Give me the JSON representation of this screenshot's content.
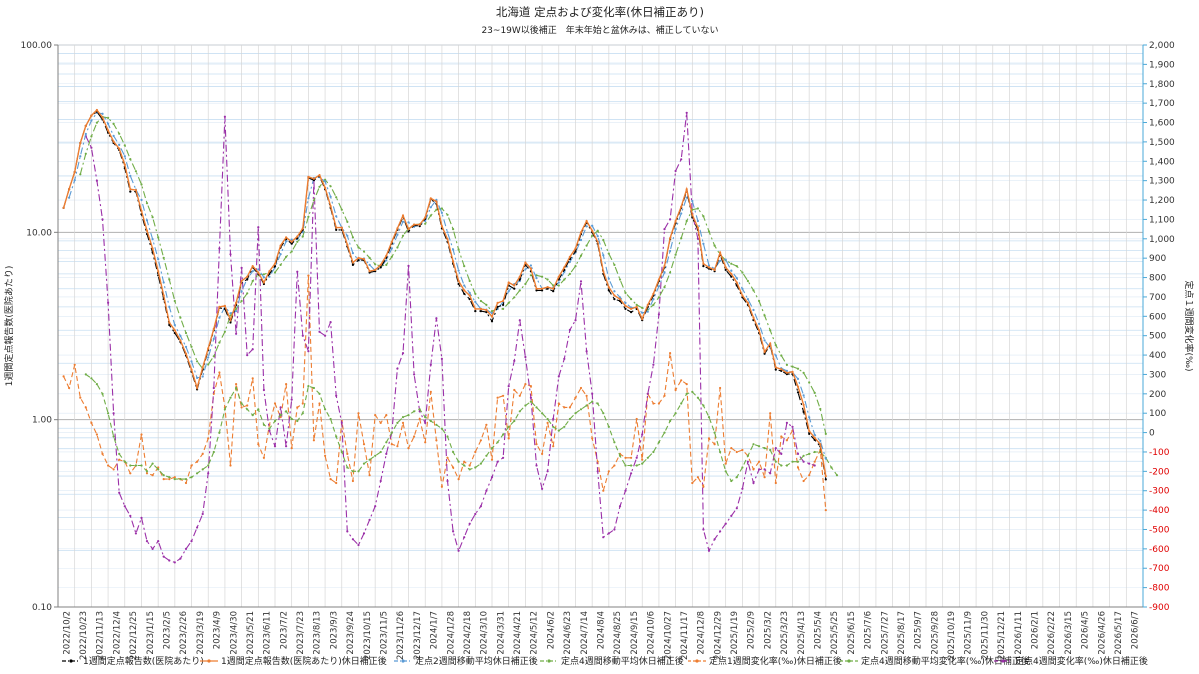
{
  "chart_data": {
    "type": "line",
    "title": "北海道 定点および変化率(休日補正あり)",
    "subtitle": "23~19W以後補正　年末年始と盆休みは、補正していない",
    "ylabel_left": "1週間定点報告数(医院あたり)",
    "ylabel_right": "定点１週間変化率(‰)",
    "y_left_scale": "log",
    "y_left_ticks": [
      "100.00",
      "10.00",
      "1.00",
      "0.10"
    ],
    "y_left_tick_values": [
      100,
      10,
      1,
      0.1
    ],
    "ylim_left": [
      0.1,
      100
    ],
    "ylim_right": [
      -900,
      2000
    ],
    "y_right_ticks": [
      "2,000",
      "1,900",
      "1,800",
      "1,700",
      "1,600",
      "1,500",
      "1,400",
      "1,300",
      "1,200",
      "1,100",
      "1,000",
      "900",
      "800",
      "700",
      "600",
      "500",
      "400",
      "300",
      "200",
      "100",
      "0",
      "-100",
      "-200",
      "-300",
      "-400",
      "-500",
      "-600",
      "-700",
      "-800",
      "-900"
    ],
    "y_right_tick_values": [
      2000,
      1900,
      1800,
      1700,
      1600,
      1500,
      1400,
      1300,
      1200,
      1100,
      1000,
      900,
      800,
      700,
      600,
      500,
      400,
      300,
      200,
      100,
      0,
      -100,
      -200,
      -300,
      -400,
      -500,
      -600,
      -700,
      -800,
      -900
    ],
    "x_ticks": [
      "2022/10/2",
      "2022/10/23",
      "2022/11/13",
      "2022/12/4",
      "2022/12/25",
      "2023/1/15",
      "2023/2/5",
      "2023/2/26",
      "2023/3/19",
      "2023/4/9",
      "2023/4/30",
      "2023/5/21",
      "2023/6/11",
      "2023/7/2",
      "2023/7/23",
      "2023/8/13",
      "2023/9/3",
      "2023/9/24",
      "2023/10/15",
      "2023/11/5",
      "2023/11/26",
      "2023/12/17",
      "2024/1/7",
      "2024/1/28",
      "2024/2/18",
      "2024/3/10",
      "2024/3/31",
      "2024/4/21",
      "2024/5/12",
      "2024/6/2",
      "2024/6/23",
      "2024/7/14",
      "2024/8/4",
      "2024/8/25",
      "2024/9/15",
      "2024/10/6",
      "2024/10/27",
      "2024/11/17",
      "2024/12/8",
      "2024/12/29",
      "2025/1/19",
      "2025/2/9",
      "2025/3/2",
      "2025/3/23",
      "2025/4/13",
      "2025/5/4",
      "2025/5/25",
      "2025/6/15",
      "2025/7/6",
      "2025/7/27",
      "2025/8/17",
      "2025/9/7",
      "2025/9/28",
      "2025/10/19",
      "2025/11/9",
      "2025/11/30",
      "2025/12/21",
      "2026/1/11",
      "2026/2/1",
      "2026/2/22",
      "2026/3/15",
      "2026/4/5",
      "2026/4/26",
      "2026/5/17",
      "2026/6/7"
    ],
    "x_start": "2022/10/2",
    "x_interval_weeks": 3,
    "series_start": "2022/10/9",
    "grid": true,
    "legend_position": "bottom",
    "series": [
      {
        "name": "1週間定点報告数(医院あたり)",
        "axis": "left",
        "color": "#000000",
        "style": "dash-dot",
        "marker": "dot",
        "values": [
          13.5,
          17.0,
          21.0,
          30.0,
          37.0,
          42.0,
          44.0,
          40.0,
          34.0,
          30.0,
          27.5,
          22.0,
          16.5,
          16.5,
          12.5,
          9.8,
          7.8,
          5.9,
          4.4,
          3.2,
          2.9,
          2.6,
          2.2,
          1.8,
          1.45,
          1.85,
          2.35,
          3.0,
          3.95,
          3.9,
          3.3,
          4.1,
          5.4,
          5.6,
          6.5,
          6.0,
          5.3,
          6.0,
          6.6,
          8.3,
          9.2,
          8.7,
          9.3,
          10.3,
          19.5,
          19.0,
          19.9,
          17.0,
          13.5,
          10.3,
          10.3,
          8.4,
          6.7,
          7.1,
          7.1,
          6.1,
          6.2,
          6.5,
          7.3,
          8.7,
          10.3,
          12.1,
          10.1,
          10.9,
          10.8,
          11.8,
          15.0,
          14.2,
          10.5,
          8.9,
          6.8,
          5.3,
          4.7,
          4.4,
          3.8,
          3.8,
          3.75,
          3.35,
          4.0,
          4.1,
          5.2,
          5.0,
          5.6,
          6.7,
          6.2,
          4.9,
          4.9,
          5.0,
          4.85,
          5.6,
          6.3,
          7.2,
          7.9,
          9.8,
          11.3,
          10.0,
          8.7,
          6.0,
          4.9,
          4.4,
          4.3,
          3.9,
          3.75,
          3.9,
          3.4,
          4.0,
          4.6,
          5.5,
          6.5,
          9.2,
          11.2,
          13.5,
          16.6,
          12.0,
          10.3,
          6.6,
          6.4,
          6.2,
          7.6,
          6.3,
          5.8,
          5.2,
          4.5,
          4.1,
          3.4,
          2.9,
          2.25,
          2.5,
          1.85,
          1.82,
          1.75,
          1.75,
          1.4,
          1.1,
          0.84,
          0.78,
          0.72,
          0.48
        ]
      },
      {
        "name": "1週間定点報告数(医院あたり)休日補正後",
        "axis": "left",
        "color": "#ed7d31",
        "style": "solid",
        "marker": "dot",
        "values": [
          13.5,
          17.0,
          21.0,
          30.0,
          37.0,
          42.0,
          45.0,
          41.0,
          35.0,
          30.5,
          28.0,
          23.0,
          17.0,
          16.8,
          13.0,
          10.2,
          8.2,
          6.2,
          4.6,
          3.3,
          3.0,
          2.65,
          2.25,
          1.85,
          1.48,
          1.9,
          2.4,
          3.05,
          4.0,
          4.05,
          3.4,
          4.2,
          5.5,
          5.8,
          6.6,
          6.1,
          5.4,
          6.2,
          6.8,
          8.5,
          9.4,
          8.9,
          9.5,
          10.5,
          19.8,
          19.3,
          20.2,
          17.3,
          13.8,
          10.6,
          10.6,
          8.6,
          6.9,
          7.3,
          7.2,
          6.2,
          6.3,
          6.7,
          7.5,
          8.9,
          10.5,
          12.3,
          10.4,
          11.0,
          11.0,
          12.0,
          15.2,
          14.6,
          10.8,
          9.2,
          7.0,
          5.5,
          4.9,
          4.6,
          3.9,
          3.9,
          3.85,
          3.55,
          4.2,
          4.3,
          5.4,
          5.2,
          5.8,
          6.9,
          6.4,
          5.0,
          5.0,
          5.1,
          5.0,
          5.8,
          6.5,
          7.4,
          8.2,
          10.0,
          11.5,
          10.2,
          8.9,
          6.2,
          5.1,
          4.6,
          4.4,
          4.05,
          3.9,
          4.0,
          3.45,
          4.1,
          4.7,
          5.6,
          6.6,
          9.3,
          11.5,
          13.7,
          17.0,
          12.4,
          10.6,
          6.8,
          6.5,
          6.3,
          7.8,
          6.5,
          6.0,
          5.4,
          4.6,
          4.2,
          3.5,
          3.0,
          2.3,
          2.55,
          1.9,
          1.86,
          1.78,
          1.8,
          1.5,
          1.2,
          0.87,
          0.8,
          0.74,
          0.5
        ]
      },
      {
        "name": "定点2週間移動平均休日補正後",
        "axis": "left",
        "color": "#5b9bd5",
        "style": "dash-dot",
        "marker": "dot",
        "values": [
          null,
          15.3,
          19.0,
          25.5,
          33.5,
          39.5,
          43.5,
          43.0,
          38.0,
          32.7,
          29.3,
          25.5,
          20.0,
          16.9,
          14.9,
          11.6,
          9.2,
          7.2,
          5.4,
          4.0,
          3.2,
          2.8,
          2.45,
          2.05,
          1.67,
          1.7,
          2.15,
          2.7,
          3.5,
          4.0,
          3.7,
          3.8,
          4.85,
          5.65,
          6.2,
          6.35,
          5.75,
          5.8,
          6.5,
          7.65,
          8.95,
          9.15,
          9.2,
          10.0,
          15.2,
          19.5,
          19.7,
          18.7,
          15.5,
          12.2,
          10.6,
          9.6,
          7.75,
          7.1,
          7.25,
          6.7,
          6.25,
          6.5,
          7.1,
          8.2,
          9.7,
          11.4,
          11.3,
          10.7,
          11.0,
          11.5,
          13.6,
          14.9,
          12.7,
          10.0,
          8.1,
          6.25,
          5.2,
          4.75,
          4.25,
          3.9,
          3.87,
          3.7,
          3.9,
          4.25,
          4.85,
          5.3,
          5.5,
          6.35,
          6.65,
          5.7,
          5.0,
          5.05,
          5.05,
          5.4,
          6.15,
          6.95,
          7.8,
          9.1,
          10.75,
          10.85,
          9.55,
          7.55,
          5.65,
          4.85,
          4.5,
          4.2,
          3.97,
          3.95,
          3.72,
          3.77,
          4.4,
          5.15,
          6.1,
          7.95,
          10.4,
          12.6,
          15.3,
          14.7,
          11.5,
          8.7,
          6.65,
          6.4,
          7.05,
          7.15,
          6.25,
          5.7,
          5.0,
          4.4,
          3.85,
          3.25,
          2.65,
          2.42,
          2.2,
          1.88,
          1.82,
          1.79,
          1.65,
          1.35,
          1.03,
          0.83,
          0.77,
          0.62
        ]
      },
      {
        "name": "定点4週間移動平均休日補正後",
        "axis": "left",
        "color": "#70ad47",
        "style": "dash-dot",
        "marker": "dot",
        "values": [
          null,
          null,
          null,
          20.4,
          26.3,
          32.5,
          38.5,
          41.3,
          40.8,
          37.9,
          33.6,
          29.1,
          24.6,
          21.2,
          18.0,
          14.3,
          12.05,
          9.4,
          7.3,
          5.6,
          4.3,
          3.5,
          2.9,
          2.45,
          2.05,
          1.87,
          1.97,
          2.18,
          2.58,
          2.95,
          3.6,
          3.9,
          4.3,
          4.72,
          5.5,
          5.95,
          5.97,
          6.1,
          6.1,
          6.7,
          7.4,
          7.9,
          8.9,
          9.5,
          12.1,
          14.8,
          17.5,
          19.1,
          17.6,
          15.4,
          13.2,
          11.4,
          9.4,
          8.3,
          7.9,
          7.3,
          6.75,
          6.6,
          6.7,
          7.4,
          8.3,
          9.6,
          10.5,
          11.0,
          11.05,
          11.1,
          12.3,
          13.2,
          13.4,
          12.4,
          10.4,
          8.1,
          6.6,
          5.5,
          4.7,
          4.3,
          4.1,
          3.8,
          3.9,
          3.9,
          4.2,
          4.5,
          4.9,
          5.3,
          5.9,
          5.9,
          5.8,
          5.6,
          5.2,
          5.2,
          5.6,
          6.0,
          6.6,
          7.5,
          8.5,
          9.6,
          10.2,
          9.1,
          7.7,
          6.7,
          5.6,
          4.75,
          4.4,
          4.1,
          3.95,
          3.87,
          4.1,
          4.5,
          5.1,
          6.1,
          7.6,
          9.3,
          11.5,
          13.2,
          13.4,
          12.2,
          10.1,
          8.5,
          7.6,
          7.1,
          6.8,
          6.6,
          6.1,
          5.5,
          4.9,
          4.3,
          3.6,
          3.0,
          2.5,
          2.2,
          1.96,
          1.92,
          1.87,
          1.78,
          1.58,
          1.39,
          1.14,
          0.84
        ]
      },
      {
        "name": "定点1週間変化率(‰)休日補正後",
        "axis": "right",
        "color": "#ed7d31",
        "style": "dash",
        "marker": "dot",
        "values": [
          290,
          230,
          350,
          180,
          130,
          50,
          -10,
          -110,
          -170,
          -190,
          -140,
          -150,
          -210,
          -170,
          -10,
          -210,
          -220,
          -180,
          -240,
          -240,
          -230,
          -240,
          -260,
          -170,
          -150,
          -110,
          -30,
          200,
          310,
          130,
          -170,
          250,
          130,
          140,
          280,
          -60,
          -130,
          40,
          150,
          80,
          250,
          -80,
          130,
          150,
          810,
          -40,
          150,
          -120,
          -240,
          -260,
          60,
          -110,
          -250,
          100,
          -60,
          -220,
          90,
          50,
          90,
          -60,
          -70,
          50,
          -80,
          -20,
          70,
          -50,
          210,
          -40,
          -280,
          -130,
          -180,
          -240,
          -150,
          -170,
          -100,
          -40,
          40,
          -140,
          180,
          190,
          -30,
          220,
          190,
          250,
          240,
          -60,
          -110,
          50,
          -70,
          150,
          130,
          130,
          180,
          230,
          190,
          -30,
          -150,
          -300,
          -200,
          -170,
          -110,
          -130,
          -130,
          70,
          -140,
          200,
          150,
          150,
          190,
          410,
          220,
          270,
          250,
          -260,
          -230,
          -280,
          -30,
          -60,
          230,
          -160,
          -80,
          -100,
          -90,
          -120,
          -190,
          -150,
          -230,
          100,
          -260,
          -20,
          -40,
          10,
          -180,
          -250,
          -220,
          -150,
          -90,
          -400
        ]
      },
      {
        "name": "定点4週間移動平均変化率(‰)休日補正後",
        "axis": "right",
        "color": "#70ad47",
        "style": "dash",
        "marker": "dot",
        "values": [
          null,
          null,
          null,
          null,
          300,
          280,
          250,
          200,
          100,
          -20,
          -110,
          -150,
          -170,
          -170,
          -170,
          -200,
          -160,
          -190,
          -220,
          -230,
          -240,
          -240,
          -240,
          -230,
          -210,
          -190,
          -170,
          -100,
          0,
          120,
          180,
          230,
          150,
          120,
          90,
          120,
          40,
          20,
          60,
          90,
          110,
          70,
          60,
          100,
          240,
          230,
          200,
          120,
          70,
          -20,
          -100,
          -180,
          -200,
          -200,
          -160,
          -140,
          -120,
          -100,
          -50,
          0,
          50,
          80,
          90,
          110,
          120,
          80,
          60,
          40,
          20,
          -20,
          -100,
          -150,
          -170,
          -190,
          -180,
          -160,
          -120,
          -80,
          -50,
          -10,
          30,
          60,
          110,
          140,
          160,
          130,
          100,
          70,
          30,
          10,
          30,
          70,
          100,
          120,
          140,
          160,
          150,
          100,
          30,
          -50,
          -120,
          -170,
          -170,
          -170,
          -160,
          -130,
          -100,
          -50,
          0,
          60,
          100,
          150,
          200,
          210,
          180,
          140,
          80,
          0,
          -100,
          -200,
          -250,
          -230,
          -180,
          -120,
          -60,
          -70,
          -80,
          -90,
          -150,
          -170,
          -170,
          -150,
          -150,
          -120,
          -110,
          -100,
          -100,
          -130,
          -180,
          -220
        ]
      },
      {
        "name": "定点4週間変化率(‰)休日補正後",
        "axis": "right",
        "color": "#9b30a8",
        "style": "dash-dot",
        "marker": "dot",
        "values": [
          null,
          null,
          null,
          null,
          1530,
          1470,
          1300,
          1100,
          670,
          100,
          -310,
          -380,
          -430,
          -520,
          -440,
          -560,
          -600,
          -560,
          -640,
          -660,
          -670,
          -650,
          -600,
          -560,
          -490,
          -420,
          -210,
          230,
          950,
          1630,
          920,
          510,
          850,
          400,
          430,
          1060,
          220,
          10,
          -70,
          130,
          -70,
          170,
          830,
          500,
          420,
          1300,
          520,
          500,
          570,
          190,
          50,
          -510,
          -550,
          -580,
          -520,
          -450,
          -380,
          -250,
          -110,
          0,
          330,
          410,
          860,
          300,
          110,
          50,
          350,
          590,
          380,
          -250,
          -510,
          -610,
          -540,
          -470,
          -420,
          -380,
          -300,
          -230,
          -150,
          -130,
          240,
          370,
          580,
          390,
          180,
          -170,
          -290,
          -200,
          70,
          290,
          380,
          530,
          580,
          780,
          420,
          200,
          -200,
          -540,
          -520,
          -500,
          -380,
          -300,
          -210,
          -130,
          -10,
          200,
          350,
          610,
          1050,
          1100,
          1350,
          1410,
          1650,
          1130,
          1000,
          -500,
          -610,
          -550,
          -510,
          -470,
          -430,
          -390,
          -290,
          -150,
          -260,
          -190,
          -190,
          -210,
          -80,
          -110,
          50,
          30,
          -110,
          -150,
          -160,
          -170
        ]
      }
    ]
  }
}
